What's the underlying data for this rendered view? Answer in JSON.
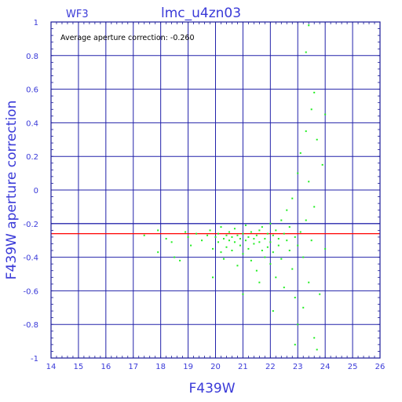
{
  "chart_data": {
    "type": "scatter",
    "title": "lmc_u4zn03",
    "chip": "WF3",
    "xlabel": "F439W",
    "ylabel": "F439W aperture correction",
    "annotation": "Average aperture correction: -0.260",
    "xlim": [
      14,
      26
    ],
    "ylim": [
      -1,
      1
    ],
    "xticks": [
      14,
      15,
      16,
      17,
      18,
      19,
      20,
      21,
      22,
      23,
      24,
      25,
      26
    ],
    "yticks": [
      -1,
      -0.8,
      -0.6,
      -0.4,
      -0.2,
      0,
      0.2,
      0.4,
      0.6,
      0.8,
      1
    ],
    "ytick_labels": [
      "-1",
      "-0.8",
      "-0.6",
      "-0.4",
      "-0.2",
      "0",
      "0.2",
      "0.4",
      "0.6",
      "0.8",
      "1"
    ],
    "grid": true,
    "hlines": [
      {
        "y": -0.2,
        "color": "#2222aa"
      },
      {
        "y": -0.26,
        "color": "#ff0000"
      }
    ],
    "colors": {
      "frame": "#1a1a9a",
      "grid": "#2222aa",
      "text": "#3a3ad8",
      "points": "#22ee22",
      "average": "#ff0000"
    },
    "points": [
      [
        17.4,
        -0.27
      ],
      [
        17.9,
        -0.24
      ],
      [
        17.9,
        -0.37
      ],
      [
        18.2,
        -0.29
      ],
      [
        18.4,
        -0.31
      ],
      [
        18.5,
        -0.4
      ],
      [
        18.7,
        -0.42
      ],
      [
        18.9,
        -0.25
      ],
      [
        19.0,
        -0.28
      ],
      [
        19.1,
        -0.33
      ],
      [
        19.3,
        -0.26
      ],
      [
        19.5,
        -0.3
      ],
      [
        19.7,
        -0.27
      ],
      [
        19.8,
        -0.24
      ],
      [
        19.9,
        -0.35
      ],
      [
        19.9,
        -0.52
      ],
      [
        20.0,
        -0.28
      ],
      [
        20.1,
        -0.26
      ],
      [
        20.1,
        -0.31
      ],
      [
        20.2,
        -0.37
      ],
      [
        20.2,
        -0.22
      ],
      [
        20.3,
        -0.29
      ],
      [
        20.3,
        -0.41
      ],
      [
        20.4,
        -0.27
      ],
      [
        20.4,
        -0.34
      ],
      [
        20.5,
        -0.25
      ],
      [
        20.5,
        -0.3
      ],
      [
        20.6,
        -0.28
      ],
      [
        20.6,
        -0.36
      ],
      [
        20.7,
        -0.23
      ],
      [
        20.7,
        -0.31
      ],
      [
        20.8,
        -0.27
      ],
      [
        20.8,
        -0.45
      ],
      [
        20.9,
        -0.29
      ],
      [
        20.9,
        -0.33
      ],
      [
        21.0,
        -0.26
      ],
      [
        21.0,
        -0.38
      ],
      [
        21.1,
        -0.21
      ],
      [
        21.1,
        -0.3
      ],
      [
        21.2,
        -0.28
      ],
      [
        21.2,
        -0.35
      ],
      [
        21.3,
        -0.25
      ],
      [
        21.3,
        -0.42
      ],
      [
        21.4,
        -0.29
      ],
      [
        21.4,
        -0.32
      ],
      [
        21.5,
        -0.27
      ],
      [
        21.5,
        -0.48
      ],
      [
        21.6,
        -0.24
      ],
      [
        21.6,
        -0.31
      ],
      [
        21.7,
        -0.36
      ],
      [
        21.7,
        -0.22
      ],
      [
        21.8,
        -0.29
      ],
      [
        21.8,
        -0.4
      ],
      [
        21.9,
        -0.26
      ],
      [
        21.9,
        -0.34
      ],
      [
        22.0,
        -0.2
      ],
      [
        22.0,
        -0.31
      ],
      [
        22.0,
        -0.44
      ],
      [
        22.1,
        -0.27
      ],
      [
        22.1,
        -0.37
      ],
      [
        22.2,
        -0.24
      ],
      [
        22.2,
        -0.52
      ],
      [
        22.3,
        -0.29
      ],
      [
        22.3,
        -0.33
      ],
      [
        22.4,
        -0.18
      ],
      [
        22.4,
        -0.41
      ],
      [
        22.5,
        -0.26
      ],
      [
        22.5,
        -0.58
      ],
      [
        22.6,
        -0.3
      ],
      [
        22.6,
        -0.12
      ],
      [
        22.7,
        -0.36
      ],
      [
        22.7,
        -0.22
      ],
      [
        22.8,
        -0.47
      ],
      [
        22.8,
        -0.05
      ],
      [
        22.9,
        -0.28
      ],
      [
        22.9,
        -0.64
      ],
      [
        23.0,
        -0.33
      ],
      [
        23.0,
        0.1
      ],
      [
        23.0,
        -0.8
      ],
      [
        23.1,
        -0.25
      ],
      [
        23.1,
        0.22
      ],
      [
        23.2,
        -0.4
      ],
      [
        23.2,
        -0.7
      ],
      [
        23.3,
        0.35
      ],
      [
        23.3,
        -0.18
      ],
      [
        23.4,
        -0.55
      ],
      [
        23.4,
        0.05
      ],
      [
        23.5,
        -0.3
      ],
      [
        23.5,
        0.48
      ],
      [
        23.6,
        -0.1
      ],
      [
        23.6,
        -0.88
      ],
      [
        23.7,
        0.3
      ],
      [
        23.8,
        -0.62
      ],
      [
        23.9,
        0.15
      ],
      [
        24.0,
        0.45
      ],
      [
        24.0,
        -0.35
      ],
      [
        23.4,
        0.98
      ],
      [
        23.3,
        0.82
      ],
      [
        23.6,
        0.58
      ],
      [
        22.9,
        -0.92
      ],
      [
        23.7,
        -0.95
      ],
      [
        21.0,
        -0.62
      ],
      [
        22.1,
        -0.72
      ],
      [
        21.6,
        -0.55
      ]
    ]
  }
}
